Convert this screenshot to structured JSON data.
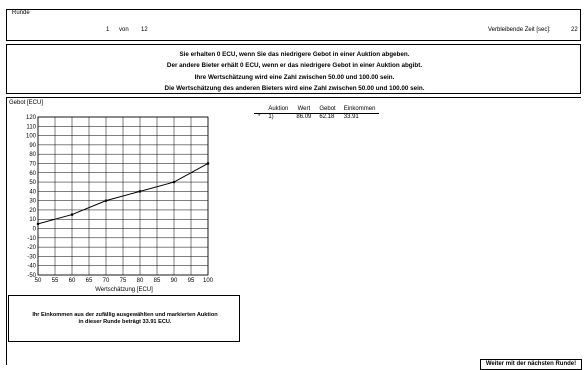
{
  "header": {
    "round_label": "Runde",
    "round_current": "1",
    "round_of": "von",
    "round_total": "12",
    "time_label": "Verbleibende Zeit [sec]:",
    "time_value": "22"
  },
  "instructions": [
    "Sie erhalten 0 ECU,  wenn Sie das niedrigere Gebot in einer Auktion abgeben.",
    "Der andere Bieter erhält 0 ECU, wenn er das niedrigere Gebot in einer Auktion abgibt.",
    "Ihre Wertschätzung wird eine Zahl zwischen 50.00 und 100.00 sein.",
    "Die Wertschätzung des anderen Bieters wird eine Zahl zwischen 50.00 und 100.00 sein."
  ],
  "auction_table": {
    "headers": [
      "Auktion",
      "Wert",
      "Gebot",
      "Einkommen"
    ],
    "rows": [
      {
        "marker": "*",
        "auction": "1)",
        "value": "86.09",
        "bid": "62.18",
        "income": "33.91"
      }
    ]
  },
  "earnings": {
    "line1": "Ihr Einkommen aus der zufällig ausgewählten und markierten Auktion",
    "line2": "in dieser Runde beträgt 33.91 ECU."
  },
  "next_button_label": "Weiter mit der nächsten Runde!",
  "chart_data": {
    "type": "line",
    "xlabel": "Wertschätzung [ECU]",
    "ylabel": "Gebot [ECU]",
    "xlim": [
      50,
      100
    ],
    "ylim": [
      -50,
      120
    ],
    "xticks": [
      50,
      55,
      60,
      65,
      70,
      75,
      80,
      85,
      90,
      95,
      100
    ],
    "yticks": [
      120,
      110,
      100,
      90,
      80,
      70,
      60,
      50,
      40,
      30,
      20,
      10,
      0,
      -10,
      -20,
      -30,
      -40,
      -50
    ],
    "grid": true,
    "series": [
      {
        "x": [
          50,
          60,
          70,
          80,
          90,
          100
        ],
        "y": [
          5,
          15,
          30,
          40,
          50,
          70
        ]
      }
    ]
  }
}
